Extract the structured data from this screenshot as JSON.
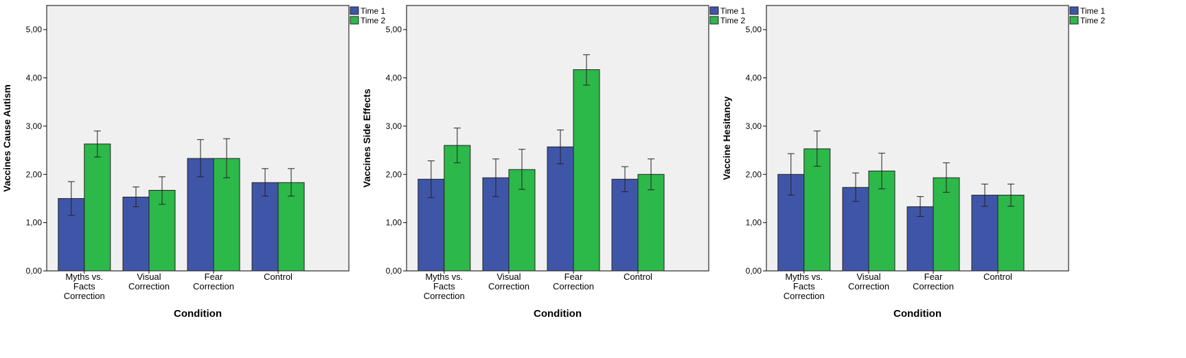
{
  "chart_data": [
    {
      "type": "bar",
      "title": "",
      "xlabel": "Condition",
      "ylabel": "Vaccines Cause Autism",
      "categories": [
        [
          "Myths vs.",
          "Facts",
          "Correction"
        ],
        [
          "Visual",
          "Correction"
        ],
        [
          "Fear",
          "Correction"
        ],
        [
          "Control"
        ]
      ],
      "series": [
        {
          "name": "Time 1",
          "color": "#3f56a8",
          "values": [
            1.5,
            1.53,
            2.33,
            1.83
          ],
          "err_low": [
            1.15,
            1.33,
            1.95,
            1.55
          ],
          "err_high": [
            1.85,
            1.74,
            2.72,
            2.12
          ]
        },
        {
          "name": "Time 2",
          "color": "#2db84a",
          "values": [
            2.63,
            1.67,
            2.33,
            1.83
          ],
          "err_low": [
            2.36,
            1.38,
            1.93,
            1.55
          ],
          "err_high": [
            2.9,
            1.95,
            2.74,
            2.12
          ]
        }
      ],
      "ylim": [
        0,
        5.5
      ],
      "yticks": [
        "0,00",
        "1,00",
        "2,00",
        "3,00",
        "4,00",
        "5,00"
      ],
      "legend": "top-right"
    },
    {
      "type": "bar",
      "title": "",
      "xlabel": "Condition",
      "ylabel": "Vaccines Side Effects",
      "categories": [
        [
          "Myths vs.",
          "Facts",
          "Correction"
        ],
        [
          "Visual",
          "Correction"
        ],
        [
          "Fear",
          "Correction"
        ],
        [
          "Control"
        ]
      ],
      "series": [
        {
          "name": "Time 1",
          "color": "#3f56a8",
          "values": [
            1.9,
            1.93,
            2.57,
            1.9
          ],
          "err_low": [
            1.52,
            1.54,
            2.22,
            1.64
          ],
          "err_high": [
            2.28,
            2.32,
            2.92,
            2.16
          ]
        },
        {
          "name": "Time 2",
          "color": "#2db84a",
          "values": [
            2.6,
            2.1,
            4.17,
            2.0
          ],
          "err_low": [
            2.24,
            1.69,
            3.85,
            1.68
          ],
          "err_high": [
            2.96,
            2.52,
            4.48,
            2.32
          ]
        }
      ],
      "ylim": [
        0,
        5.5
      ],
      "yticks": [
        "0,00",
        "1,00",
        "2,00",
        "3,00",
        "4,00",
        "5,00"
      ],
      "legend": "top-right"
    },
    {
      "type": "bar",
      "title": "",
      "xlabel": "Condition",
      "ylabel": "Vaccine Hesitancy",
      "categories": [
        [
          "Myths vs.",
          "Facts",
          "Correction"
        ],
        [
          "Visual",
          "Correction"
        ],
        [
          "Fear",
          "Correction"
        ],
        [
          "Control"
        ]
      ],
      "series": [
        {
          "name": "Time 1",
          "color": "#3f56a8",
          "values": [
            2.0,
            1.73,
            1.33,
            1.57
          ],
          "err_low": [
            1.57,
            1.44,
            1.13,
            1.34
          ],
          "err_high": [
            2.43,
            2.03,
            1.54,
            1.8
          ]
        },
        {
          "name": "Time 2",
          "color": "#2db84a",
          "values": [
            2.53,
            2.07,
            1.93,
            1.57
          ],
          "err_low": [
            2.17,
            1.7,
            1.63,
            1.34
          ],
          "err_high": [
            2.9,
            2.44,
            2.24,
            1.8
          ]
        }
      ],
      "ylim": [
        0,
        5.5
      ],
      "yticks": [
        "0,00",
        "1,00",
        "2,00",
        "3,00",
        "4,00",
        "5,00"
      ],
      "legend": "top-right"
    }
  ]
}
